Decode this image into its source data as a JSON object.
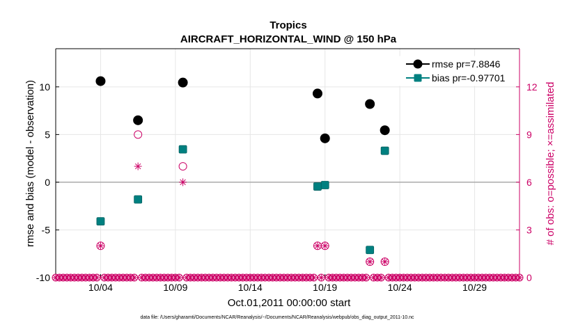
{
  "chart_data": {
    "type": "scatter",
    "title": "Tropics",
    "subtitle": "AIRCRAFT_HORIZONTAL_WIND @ 150 hPa",
    "xlabel": "Oct.01,2011 00:00:00 start",
    "ylabel": "rmse and bias (model - observation)",
    "y2label": "# of obs: o=possible; ×=assimilated",
    "footnote": "data file: /Users/gharamti/Documents/NCAR/Reanalysis/~/Documents/NCAR/Reanalysis/webpub/obs_diag_output_2011-10.nc",
    "xlim": [
      0.5,
      31.5
    ],
    "ylim": [
      -10,
      14
    ],
    "y2lim": [
      0,
      14.4
    ],
    "x_ticks": [
      3.5,
      8.5,
      13.5,
      18.5,
      23.5,
      28.5
    ],
    "x_tick_labels": [
      "10/04",
      "10/09",
      "10/14",
      "10/19",
      "10/24",
      "10/29"
    ],
    "y_ticks": [
      -10,
      -5,
      0,
      5,
      10
    ],
    "y_tick_labels": [
      "-10",
      "-5",
      "0",
      "5",
      "10"
    ],
    "y2_ticks": [
      0,
      3,
      6,
      9,
      12
    ],
    "y2_tick_labels": [
      "0",
      "3",
      "6",
      "9",
      "12"
    ],
    "series": [
      {
        "name": "rmse",
        "legend": "rmse pr=7.8846",
        "color": "#000000",
        "x": [
          3.5,
          6.0,
          9.0,
          18.0,
          18.5,
          21.5,
          22.5
        ],
        "values": [
          10.6,
          6.5,
          10.45,
          9.3,
          4.6,
          8.2,
          5.45
        ]
      },
      {
        "name": "bias",
        "legend": "bias pr=-0.97701",
        "color": "#008080",
        "x": [
          3.5,
          6.0,
          9.0,
          18.0,
          18.5,
          21.5,
          22.5
        ],
        "values": [
          -4.1,
          -1.8,
          3.45,
          -0.45,
          -0.3,
          -7.1,
          3.3
        ]
      },
      {
        "name": "obs_possible",
        "axis": "right",
        "marker": "circle",
        "color": "#cc0066",
        "x": [
          3.5,
          6.0,
          9.0,
          18.0,
          18.5,
          21.5,
          22.5
        ],
        "values": [
          2,
          9,
          7,
          2,
          2,
          1,
          1
        ]
      },
      {
        "name": "obs_assimilated",
        "axis": "right",
        "marker": "asterisk",
        "color": "#cc0066",
        "x": [
          3.5,
          6.0,
          9.0,
          18.0,
          18.5,
          21.5,
          22.5
        ],
        "values": [
          2,
          7,
          6,
          2,
          2,
          1,
          1
        ]
      }
    ],
    "zero_count_x_start": 0.5,
    "zero_count_x_end": 31.5,
    "zero_count_step": 0.25,
    "grid": true,
    "legend_position": "top-right",
    "colors": {
      "left_axis": "#000000",
      "right_axis": "#cc0066",
      "zero_line": "#aaaaaa",
      "grid": "#e6e6e6"
    }
  }
}
